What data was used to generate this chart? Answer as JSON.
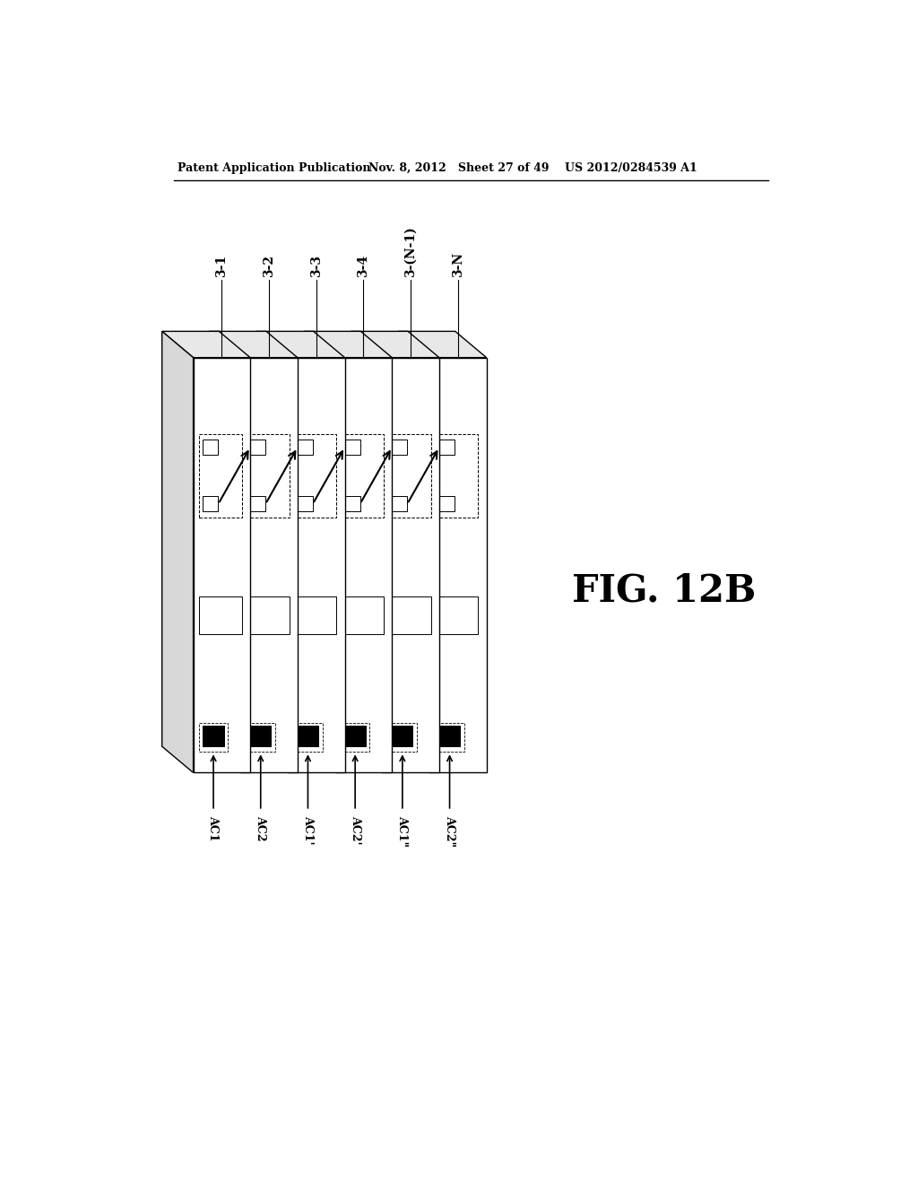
{
  "header_left": "Patent Application Publication",
  "header_mid": "Nov. 8, 2012   Sheet 27 of 49",
  "header_right": "US 2012/0284539 A1",
  "fig_label": "FIG. 12B",
  "module_labels": [
    "3-1",
    "3-2",
    "3-3",
    "3-4",
    "3-(N-1)",
    "3-N"
  ],
  "ac_labels": [
    "AC1",
    "AC2",
    "AC1’",
    "AC2’",
    "AC1’’",
    "AC2’’"
  ],
  "num_modules": 6,
  "bg_color": "#ffffff",
  "line_color": "#000000",
  "text_color": "#000000"
}
